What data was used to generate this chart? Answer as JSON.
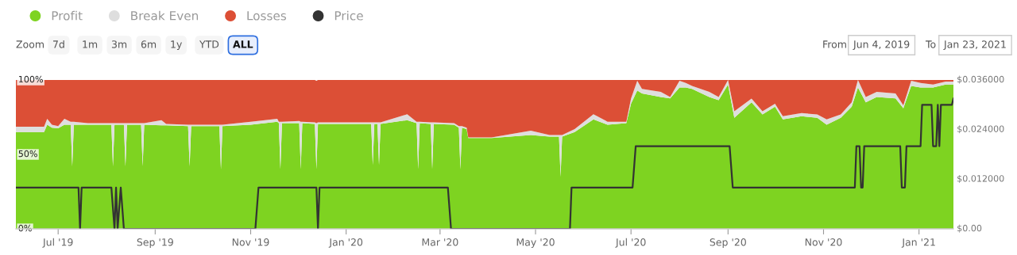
{
  "chart_data": {
    "type": "area",
    "stacked": true,
    "legend": "top left",
    "x": [
      "2019-06-04",
      "2019-06-22",
      "2019-06-24",
      "2019-06-27",
      "2019-07-01",
      "2019-07-05",
      "2019-07-09",
      "2019-07-10",
      "2019-07-11",
      "2019-07-20",
      "2019-08-04",
      "2019-08-05",
      "2019-08-06",
      "2019-08-12",
      "2019-08-13",
      "2019-08-14",
      "2019-08-23",
      "2019-08-24",
      "2019-08-25",
      "2019-09-05",
      "2019-09-08",
      "2019-09-22",
      "2019-09-23",
      "2019-09-24",
      "2019-10-12",
      "2019-10-13",
      "2019-10-14",
      "2019-11-01",
      "2019-11-18",
      "2019-11-19",
      "2019-11-20",
      "2019-11-21",
      "2019-12-02",
      "2019-12-03",
      "2019-12-04",
      "2019-12-12",
      "2019-12-13",
      "2019-12-14",
      "2020-01-01",
      "2020-01-17",
      "2020-01-18",
      "2020-01-19",
      "2020-01-21",
      "2020-01-22",
      "2020-01-23",
      "2020-02-09",
      "2020-02-15",
      "2020-02-16",
      "2020-02-17",
      "2020-02-24",
      "2020-02-25",
      "2020-02-26",
      "2020-03-10",
      "2020-03-13",
      "2020-03-14",
      "2020-03-15",
      "2020-03-18",
      "2020-03-19",
      "2020-04-03",
      "2020-04-28",
      "2020-05-10",
      "2020-05-16",
      "2020-05-17",
      "2020-05-18",
      "2020-05-26",
      "2020-06-07",
      "2020-06-16",
      "2020-06-28",
      "2020-07-01",
      "2020-07-05",
      "2020-07-08",
      "2020-07-20",
      "2020-07-26",
      "2020-08-01",
      "2020-08-05",
      "2020-08-09",
      "2020-08-20",
      "2020-08-26",
      "2020-09-01",
      "2020-09-05",
      "2020-09-16",
      "2020-09-23",
      "2020-10-01",
      "2020-10-06",
      "2020-10-18",
      "2020-10-28",
      "2020-11-03",
      "2020-11-12",
      "2020-11-19",
      "2020-11-23",
      "2020-11-28",
      "2020-12-05",
      "2020-12-17",
      "2020-12-22",
      "2020-12-27",
      "2021-01-02",
      "2021-01-10",
      "2021-01-18",
      "2021-01-23"
    ],
    "series": [
      {
        "name": "Profit",
        "color": "#7ed321",
        "values": [
          65,
          65,
          70,
          68,
          67.5,
          70,
          70,
          42,
          70,
          70,
          70,
          42,
          70,
          70,
          42,
          70,
          70,
          42,
          70,
          69.5,
          69.5,
          69,
          42,
          69,
          69,
          40,
          69,
          70,
          72,
          71,
          40,
          71,
          71,
          40,
          71,
          70.5,
          40,
          70.5,
          70.5,
          70.5,
          43,
          70.5,
          70.5,
          43,
          70.5,
          73,
          71,
          40,
          71,
          70.5,
          40,
          70.5,
          70,
          68,
          40,
          68,
          67,
          61,
          61,
          63,
          62,
          62,
          35,
          62,
          65,
          73.5,
          70,
          71,
          84,
          93,
          91,
          88.6,
          87.6,
          95,
          95,
          94,
          88.6,
          86.5,
          97,
          74.6,
          85,
          76.8,
          82,
          73.5,
          75.7,
          74.6,
          70,
          74.6,
          82,
          95,
          85,
          88.6,
          87.6,
          81,
          96,
          95,
          95,
          97,
          97
        ]
      },
      {
        "name": "Break Even",
        "color": "#dedede",
        "values": [
          3.6,
          3.6,
          4,
          2,
          1.5,
          4,
          2,
          30,
          2,
          1,
          1,
          29,
          1,
          1,
          29,
          1,
          1,
          29,
          1,
          3.5,
          1,
          1,
          28,
          1,
          1,
          30,
          1,
          2,
          2,
          1,
          32,
          1,
          1.5,
          32,
          1,
          1,
          31,
          1,
          1,
          1,
          28.5,
          1,
          1,
          28.5,
          1,
          4,
          1,
          32,
          1,
          1,
          31.5,
          1,
          1,
          1,
          29,
          1,
          1,
          0.5,
          0.5,
          3,
          1,
          1,
          28,
          1,
          2,
          3.5,
          2,
          1,
          3.5,
          6.5,
          3,
          3.4,
          1,
          4.5,
          3,
          2,
          3.4,
          2.1,
          3,
          4.4,
          2.5,
          2.2,
          2,
          2.2,
          2.1,
          2.2,
          3.5,
          2.2,
          3,
          5,
          3.6,
          3.4,
          3.4,
          2,
          3.5,
          3,
          2,
          2,
          2
        ]
      },
      {
        "name": "Losses",
        "color": "#dc4f36",
        "values": [
          31.4,
          31.4,
          26,
          30,
          31,
          26,
          28,
          28,
          28,
          29,
          29,
          29,
          29,
          29,
          29,
          29,
          29,
          29,
          29,
          27,
          29.5,
          30,
          30,
          30,
          30,
          30,
          30,
          28,
          26,
          28,
          28,
          28,
          27.5,
          28,
          28,
          28.5,
          28.5,
          28.5,
          28.5,
          28.5,
          28.5,
          28.5,
          28.5,
          28.5,
          28.5,
          23,
          28,
          28,
          28,
          28.5,
          28.5,
          28.5,
          29,
          31,
          31,
          31,
          32,
          38.5,
          38.5,
          34,
          37,
          37,
          37,
          37,
          33,
          23,
          28,
          28,
          12.5,
          0.5,
          6,
          8,
          11.4,
          0.5,
          2,
          4,
          8,
          11.4,
          0,
          21,
          12.5,
          21,
          16,
          24.3,
          22.2,
          23.2,
          26.5,
          23.2,
          15,
          0,
          11.4,
          8,
          9,
          17,
          0.5,
          2,
          3,
          1,
          1
        ]
      },
      {
        "name": "Price",
        "type": "line",
        "axis": "y2",
        "color": "#333333",
        "x": [
          "2019-06-04",
          "2019-07-14",
          "2019-07-15",
          "2019-07-16",
          "2019-08-04",
          "2019-08-06",
          "2019-08-07",
          "2019-08-08",
          "2019-08-10",
          "2019-08-12",
          "2019-11-04",
          "2019-11-06",
          "2019-12-13",
          "2019-12-14",
          "2019-12-15",
          "2020-03-06",
          "2020-03-08",
          "2020-05-23",
          "2020-05-24",
          "2020-07-02",
          "2020-07-04",
          "2020-09-02",
          "2020-09-04",
          "2020-11-21",
          "2020-11-22",
          "2020-11-24",
          "2020-11-25",
          "2020-11-26",
          "2020-11-27",
          "2020-12-20",
          "2020-12-21",
          "2020-12-23",
          "2020-12-24",
          "2021-01-02",
          "2021-01-03",
          "2021-01-09",
          "2021-01-10",
          "2021-01-12",
          "2021-01-13",
          "2021-01-14",
          "2021-01-15",
          "2021-01-22",
          "2021-01-23"
        ],
        "values": [
          0.01,
          0.01,
          0,
          0.01,
          0.01,
          0,
          0.01,
          0,
          0.01,
          0,
          0,
          0.01,
          0.01,
          0,
          0.01,
          0.01,
          0,
          0,
          0.01,
          0.01,
          0.02,
          0.02,
          0.01,
          0.01,
          0.02,
          0.02,
          0.01,
          0.01,
          0.02,
          0.02,
          0.01,
          0.01,
          0.02,
          0.02,
          0.03,
          0.03,
          0.02,
          0.02,
          0.03,
          0.02,
          0.03,
          0.03,
          0.0315
        ]
      }
    ],
    "xlim": [
      "2019-06-04",
      "2021-01-23"
    ],
    "xticks": [
      {
        "value": "2019-07-01",
        "label": "Jul '19"
      },
      {
        "value": "2019-09-01",
        "label": "Sep '19"
      },
      {
        "value": "2019-11-01",
        "label": "Nov '19"
      },
      {
        "value": "2020-01-01",
        "label": "Jan '20"
      },
      {
        "value": "2020-03-01",
        "label": "Mar '20"
      },
      {
        "value": "2020-05-01",
        "label": "May '20"
      },
      {
        "value": "2020-07-01",
        "label": "Jul '20"
      },
      {
        "value": "2020-09-01",
        "label": "Sep '20"
      },
      {
        "value": "2020-11-01",
        "label": "Nov '20"
      },
      {
        "value": "2021-01-01",
        "label": "Jan '21"
      }
    ],
    "ylim": [
      0,
      100
    ],
    "yticks": [
      {
        "value": 0,
        "label": "0%"
      },
      {
        "value": 50,
        "label": "50%"
      },
      {
        "value": 100,
        "label": "100%"
      }
    ],
    "y2lim": [
      0,
      0.036
    ],
    "y2ticks": [
      {
        "value": 0,
        "label": "$0.00"
      },
      {
        "value": 0.012,
        "label": "$0.012000"
      },
      {
        "value": 0.024,
        "label": "$0.024000"
      },
      {
        "value": 0.036,
        "label": "$0.036000"
      }
    ],
    "annotations": [
      "Zoom",
      "7d",
      "1m",
      "3m",
      "6m",
      "1y",
      "YTD",
      "ALL",
      "From",
      "Jun 4, 2019",
      "To",
      "Jan 23, 2021"
    ]
  }
}
